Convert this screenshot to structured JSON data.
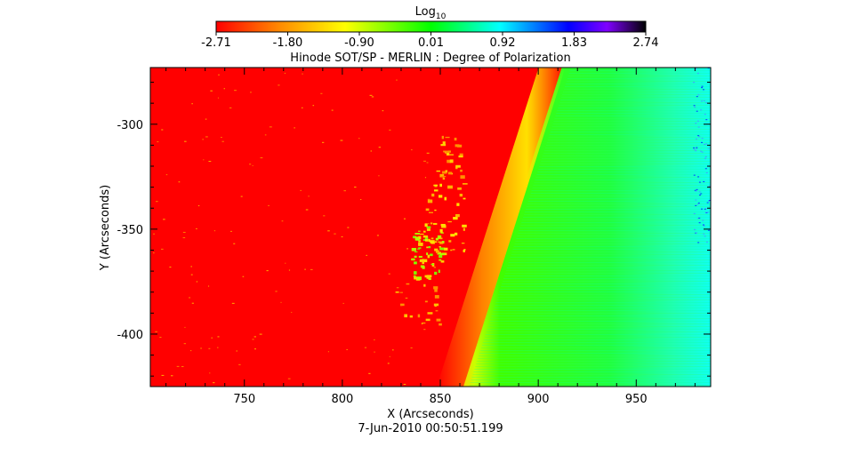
{
  "chart_data": {
    "type": "heatmap",
    "title": "Hinode SOT/SP - MERLIN : Degree of Polarization",
    "xlabel": "X (Arcseconds)",
    "ylabel": "Y (Arcseconds)",
    "date_label": "7-Jun-2010 00:50:51.199",
    "xlim": [
      702,
      988
    ],
    "ylim": [
      -425,
      -273
    ],
    "x_ticks": [
      750,
      800,
      850,
      900,
      950
    ],
    "y_ticks": [
      -300,
      -350,
      -400
    ],
    "colorbar": {
      "title_base": "Log",
      "title_sub": "10",
      "ticks": [
        "-2.71",
        "-1.80",
        "-0.90",
        "0.01",
        "0.92",
        "1.83",
        "2.74"
      ],
      "range": [
        -2.71,
        2.74
      ],
      "colors": [
        "#ff0000",
        "#ff8c00",
        "#ffff00",
        "#00ff00",
        "#00ffff",
        "#0000ff",
        "#8000ff",
        "#000000"
      ]
    },
    "limb_boundary": {
      "description": "solar limb transition from red disk to green off-limb",
      "x_at_bottom": 860,
      "x_at_top": 912
    }
  }
}
